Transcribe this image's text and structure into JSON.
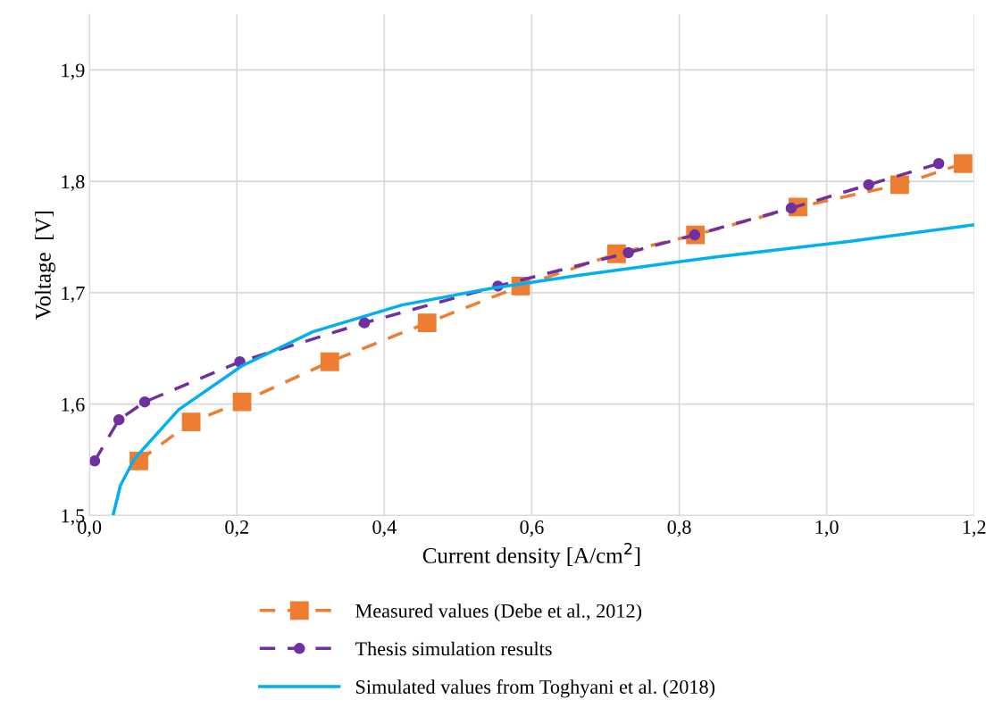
{
  "chart_data": {
    "type": "line",
    "xlabel": "Current density [A/cm$^{2}$]",
    "ylabel": "Voltage  [V]",
    "xlim": [
      0,
      1.2
    ],
    "ylim": [
      1.5,
      1.95
    ],
    "xticks": [
      {
        "value": 0,
        "label": "0,0"
      },
      {
        "value": 0.2,
        "label": "0,2"
      },
      {
        "value": 0.4,
        "label": "0,4"
      },
      {
        "value": 0.6,
        "label": "0,6"
      },
      {
        "value": 0.8,
        "label": "0,8"
      },
      {
        "value": 1.0,
        "label": "1,0"
      },
      {
        "value": 1.2,
        "label": "1,2"
      }
    ],
    "yticks": [
      {
        "value": 1.5,
        "label": "1,5"
      },
      {
        "value": 1.6,
        "label": "1,6"
      },
      {
        "value": 1.7,
        "label": "1,7"
      },
      {
        "value": 1.8,
        "label": "1,8"
      },
      {
        "value": 1.9,
        "label": "1,9"
      }
    ],
    "grid": true,
    "legend": "bottom",
    "series": [
      {
        "name": "Measured values (Debe et al., 2012)",
        "color": "#ed7d31",
        "marker": "square",
        "line_style": "dashed",
        "x": [
          0.067,
          0.138,
          0.207,
          0.326,
          0.458,
          0.585,
          0.715,
          0.822,
          0.961,
          1.099,
          1.185
        ],
        "values": [
          1.549,
          1.584,
          1.602,
          1.638,
          1.673,
          1.706,
          1.735,
          1.752,
          1.777,
          1.797,
          1.816
        ]
      },
      {
        "name": "Thesis simulation results",
        "color": "#7030a0",
        "marker": "circle",
        "line_style": "dashed",
        "x": [
          0.007,
          0.04,
          0.075,
          0.204,
          0.373,
          0.554,
          0.731,
          0.821,
          0.952,
          1.057,
          1.152
        ],
        "values": [
          1.549,
          1.586,
          1.602,
          1.638,
          1.673,
          1.706,
          1.736,
          1.752,
          1.776,
          1.797,
          1.816
        ]
      },
      {
        "name": "Simulated values from Toghyani et al. (2018)",
        "color": "#00b0f0",
        "marker": "none",
        "line_style": "solid",
        "x": [
          0.032,
          0.042,
          0.061,
          0.121,
          0.206,
          0.303,
          0.424,
          0.545,
          0.667,
          0.848,
          1.03,
          1.2
        ],
        "values": [
          1.5,
          1.527,
          1.551,
          1.595,
          1.634,
          1.665,
          1.689,
          1.704,
          1.716,
          1.732,
          1.746,
          1.761
        ]
      }
    ]
  }
}
